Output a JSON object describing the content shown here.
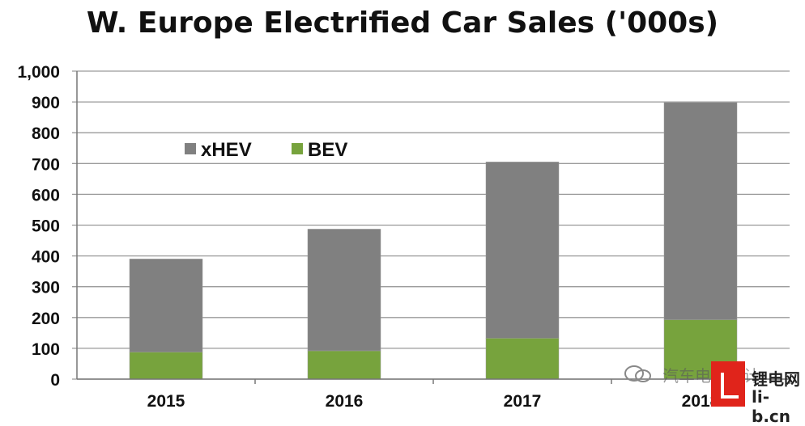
{
  "chart_data": {
    "type": "bar",
    "stacked": true,
    "title": "W. Europe Electrified Car Sales ('000s)",
    "categories": [
      "2015",
      "2016",
      "2017",
      "2018"
    ],
    "series": [
      {
        "name": "BEV",
        "values": [
          88,
          92,
          133,
          193
        ],
        "color": "#77a33d"
      },
      {
        "name": "xHEV",
        "values": [
          302,
          395,
          572,
          705
        ],
        "color": "#808080"
      }
    ],
    "ylim": [
      0,
      1000
    ],
    "yticks": [
      "0",
      "100",
      "200",
      "300",
      "400",
      "500",
      "600",
      "700",
      "800",
      "900",
      "1,000"
    ],
    "grid": true,
    "legend_position": "top-left"
  },
  "legend": {
    "items": [
      {
        "label": "xHEV",
        "color": "#808080"
      },
      {
        "label": "BEV",
        "color": "#77a33d"
      }
    ]
  },
  "watermark": {
    "line1": "汽车电子设计",
    "line2": "锂电网",
    "line3": "li-b.cn"
  }
}
